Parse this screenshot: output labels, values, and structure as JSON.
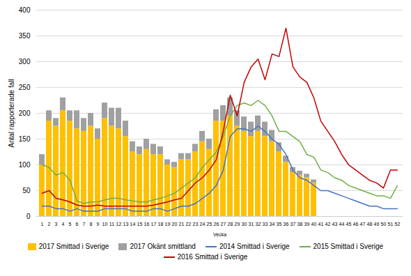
{
  "chart_data": {
    "type": "bar",
    "stacked": true,
    "xlabel": "Vecka",
    "ylabel": "Antal rapporterade fall",
    "categories": [
      1,
      2,
      3,
      4,
      5,
      6,
      7,
      8,
      9,
      10,
      11,
      12,
      13,
      14,
      15,
      16,
      17,
      18,
      19,
      20,
      21,
      22,
      23,
      24,
      25,
      26,
      27,
      28,
      29,
      30,
      31,
      32,
      33,
      34,
      35,
      36,
      37,
      38,
      39,
      40,
      41,
      42,
      43,
      44,
      45,
      46,
      47,
      48,
      49,
      50,
      51,
      52
    ],
    "series": [
      {
        "name": "2017 Smittad i Sverige",
        "type": "bar",
        "color": "#FFC000",
        "values": [
          100,
          185,
          175,
          205,
          185,
          170,
          165,
          175,
          150,
          190,
          175,
          170,
          155,
          125,
          120,
          130,
          120,
          120,
          100,
          95,
          110,
          110,
          125,
          145,
          130,
          185,
          185,
          195,
          175,
          165,
          155,
          165,
          155,
          145,
          125,
          105,
          85,
          80,
          75,
          65,
          0,
          0,
          0,
          0,
          0,
          0,
          0,
          0,
          0,
          0,
          0,
          0
        ]
      },
      {
        "name": "2017 Okänt smittland",
        "type": "bar",
        "color": "#A0A0A0",
        "values": [
          20,
          20,
          15,
          25,
          20,
          35,
          25,
          25,
          20,
          30,
          35,
          40,
          30,
          20,
          15,
          20,
          20,
          15,
          10,
          10,
          12,
          12,
          15,
          20,
          20,
          22,
          30,
          35,
          30,
          28,
          28,
          30,
          28,
          22,
          18,
          12,
          10,
          8,
          7,
          6,
          0,
          0,
          0,
          0,
          0,
          0,
          0,
          0,
          0,
          0,
          0,
          0
        ]
      },
      {
        "name": "2014 Smittad i Sverige",
        "type": "line",
        "color": "#4472C4",
        "values": [
          20,
          20,
          15,
          15,
          10,
          15,
          10,
          10,
          10,
          15,
          15,
          15,
          15,
          10,
          10,
          10,
          15,
          15,
          10,
          15,
          20,
          20,
          25,
          35,
          45,
          60,
          90,
          155,
          170,
          170,
          165,
          175,
          165,
          150,
          140,
          120,
          90,
          75,
          70,
          60,
          50,
          50,
          45,
          40,
          35,
          30,
          25,
          20,
          20,
          15,
          15,
          15
        ]
      },
      {
        "name": "2015 Smittad i Sverige",
        "type": "line",
        "color": "#70AD47",
        "values": [
          100,
          95,
          80,
          85,
          70,
          30,
          25,
          28,
          28,
          32,
          35,
          35,
          32,
          30,
          28,
          28,
          32,
          35,
          40,
          45,
          55,
          65,
          75,
          95,
          110,
          125,
          155,
          195,
          215,
          220,
          215,
          225,
          215,
          195,
          165,
          165,
          155,
          145,
          120,
          115,
          90,
          85,
          75,
          70,
          60,
          55,
          50,
          45,
          40,
          40,
          35,
          60
        ]
      },
      {
        "name": "2016 Smittad i Sverige",
        "type": "line",
        "color": "#C00000",
        "values": [
          45,
          50,
          35,
          32,
          28,
          22,
          20,
          20,
          22,
          20,
          20,
          20,
          20,
          20,
          20,
          20,
          22,
          25,
          28,
          32,
          35,
          50,
          65,
          75,
          90,
          110,
          165,
          235,
          195,
          260,
          290,
          305,
          265,
          315,
          310,
          365,
          290,
          270,
          260,
          230,
          185,
          165,
          145,
          120,
          100,
          90,
          80,
          70,
          65,
          55,
          90,
          90
        ]
      }
    ],
    "ylim": [
      0,
      400
    ],
    "yticks": [
      0,
      50,
      100,
      150,
      200,
      250,
      300,
      350,
      400
    ],
    "grid": true,
    "legend": "bottom"
  }
}
